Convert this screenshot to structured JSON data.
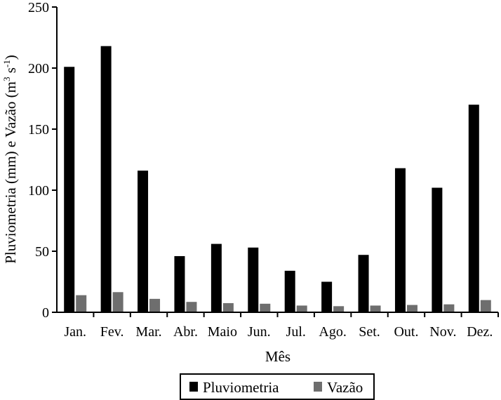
{
  "chart_data": {
    "type": "bar",
    "categories": [
      "Jan.",
      "Fev.",
      "Mar.",
      "Abr.",
      "Maio",
      "Jun.",
      "Jul.",
      "Ago.",
      "Set.",
      "Out.",
      "Nov.",
      "Dez."
    ],
    "series": [
      {
        "name": "Pluviometria",
        "color": "#000000",
        "values": [
          201,
          218,
          116,
          46,
          56,
          53,
          34,
          25,
          47,
          118,
          102,
          170
        ]
      },
      {
        "name": "Vazão",
        "color": "#6e6e6e",
        "values": [
          14,
          16.5,
          11,
          8.5,
          7.5,
          7,
          5.5,
          5,
          5.5,
          6,
          6.5,
          10
        ]
      }
    ],
    "xlabel": "Mês",
    "ylabel": "Pluviometria (mm) e  Vazão (m",
    "ylabel_unit_sup1": "3",
    "ylabel_unit_mid": " s",
    "ylabel_unit_sup2": "-1",
    "ylabel_close": ")",
    "ylim": [
      0,
      250
    ],
    "yticks": [
      0,
      50,
      100,
      150,
      200,
      250
    ],
    "legend_position": "bottom-center"
  }
}
